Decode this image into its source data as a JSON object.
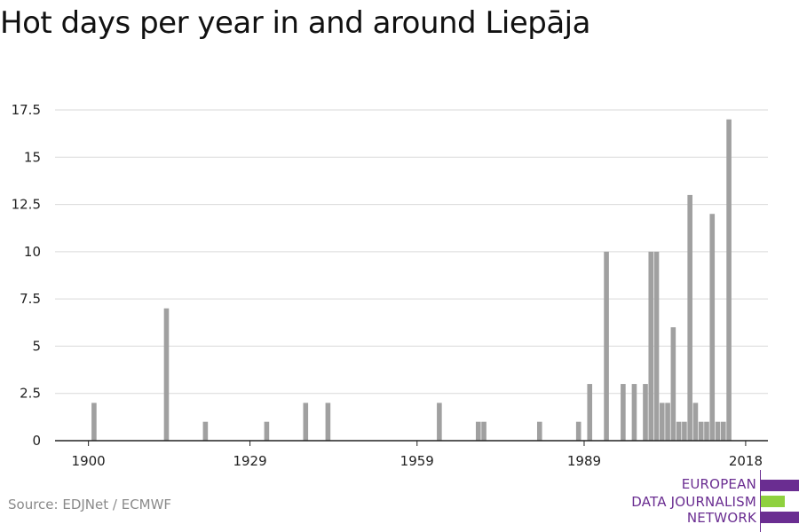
{
  "chart_data": {
    "type": "bar",
    "title": "Hot days per year in and around Liepāja",
    "xlabel": "",
    "ylabel": "",
    "ylim": [
      0,
      17.5
    ],
    "yticks": [
      0,
      2.5,
      5,
      7.5,
      10,
      12.5,
      15,
      17.5
    ],
    "ytick_labels": [
      "0",
      "2.5",
      "5",
      "7.5",
      "10",
      "12.5",
      "15",
      "17.5"
    ],
    "xlim": [
      1894,
      2022
    ],
    "xticks": [
      1900,
      1929,
      1959,
      1989,
      2018
    ],
    "xtick_labels": [
      "1900",
      "1929",
      "1959",
      "1989",
      "2018"
    ],
    "grid": true,
    "bar_color": "#a0a0a0",
    "years": [
      1901,
      1914,
      1921,
      1932,
      1939,
      1943,
      1963,
      1970,
      1971,
      1981,
      1988,
      1990,
      1993,
      1996,
      1998,
      2000,
      2001,
      2002,
      2003,
      2004,
      2005,
      2006,
      2007,
      2008,
      2009,
      2010,
      2011,
      2012,
      2013,
      2014,
      2015,
      2016,
      2018
    ],
    "values": [
      2,
      7,
      1,
      1,
      2,
      2,
      2,
      1,
      1,
      1,
      1,
      3,
      10,
      3,
      3,
      3,
      10,
      10,
      2,
      2,
      6,
      1,
      1,
      13,
      2,
      1,
      1,
      12,
      1,
      1,
      17,
      0,
      0
    ]
  },
  "source_text": "Source: EDJNet / ECMWF",
  "logo": {
    "lines": [
      "EUROPEAN",
      "DATA JOURNALISM",
      "NETWORK"
    ],
    "colors": {
      "purple": "#6a2d91",
      "green": "#8fd13f"
    }
  }
}
